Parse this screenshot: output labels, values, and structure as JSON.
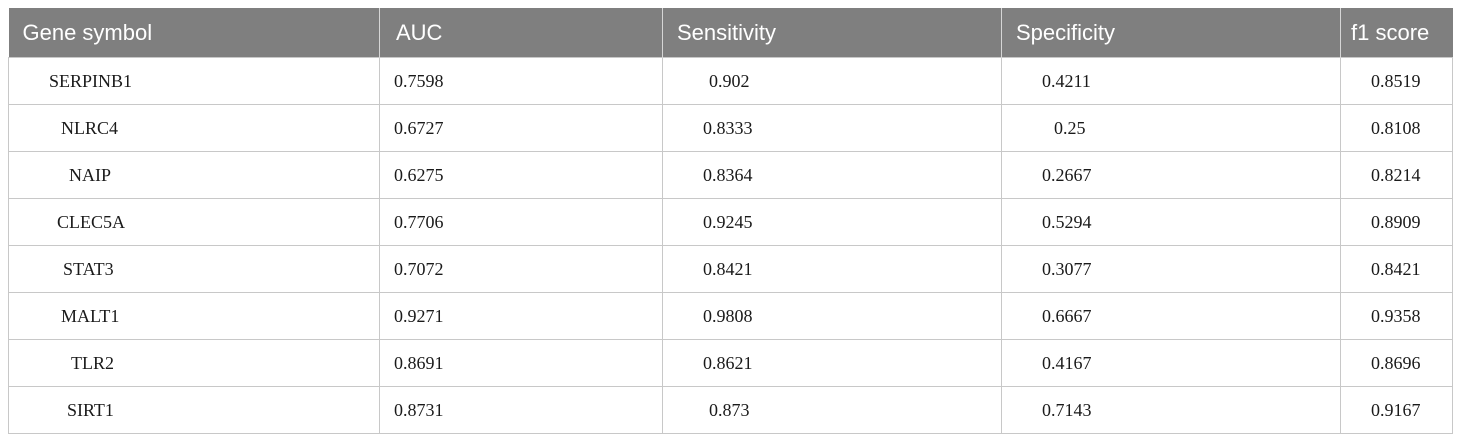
{
  "table": {
    "headers": [
      "Gene symbol",
      "AUC",
      "Sensitivity",
      "Specificity",
      "f1 score"
    ],
    "rows": [
      {
        "gene": "SERPINB1",
        "auc": "0.7598",
        "sensitivity": "0.902",
        "specificity": "0.4211",
        "f1": "0.8519"
      },
      {
        "gene": "NLRC4",
        "auc": "0.6727",
        "sensitivity": "0.8333",
        "specificity": "0.25",
        "f1": "0.8108"
      },
      {
        "gene": "NAIP",
        "auc": "0.6275",
        "sensitivity": "0.8364",
        "specificity": "0.2667",
        "f1": "0.8214"
      },
      {
        "gene": "CLEC5A",
        "auc": "0.7706",
        "sensitivity": "0.9245",
        "specificity": "0.5294",
        "f1": "0.8909"
      },
      {
        "gene": "STAT3",
        "auc": "0.7072",
        "sensitivity": "0.8421",
        "specificity": "0.3077",
        "f1": "0.8421"
      },
      {
        "gene": "MALT1",
        "auc": "0.9271",
        "sensitivity": "0.9808",
        "specificity": "0.6667",
        "f1": "0.9358"
      },
      {
        "gene": "TLR2",
        "auc": "0.8691",
        "sensitivity": "0.8621",
        "specificity": "0.4167",
        "f1": "0.8696"
      },
      {
        "gene": "SIRT1",
        "auc": "0.8731",
        "sensitivity": "0.873",
        "specificity": "0.7143",
        "f1": "0.9167"
      }
    ]
  }
}
